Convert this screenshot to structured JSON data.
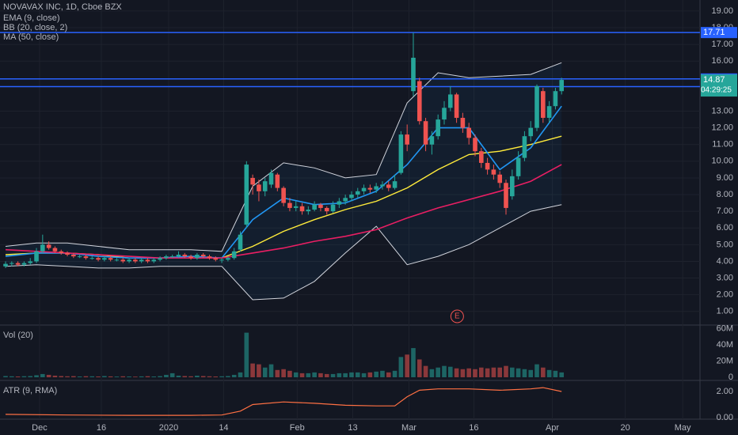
{
  "chart_data": [
    {
      "type": "candlestick",
      "title": "NOVAVAX INC, 1D, Cboe BZX",
      "xlim": [
        -0.9,
        112.4
      ],
      "ylim": [
        0.23,
        19.66
      ],
      "yticks": [
        {
          "value": 1,
          "label": "1.00"
        },
        {
          "value": 2,
          "label": "2.00"
        },
        {
          "value": 3,
          "label": "3.00"
        },
        {
          "value": 4,
          "label": "4.00"
        },
        {
          "value": 5,
          "label": "5.00"
        },
        {
          "value": 6,
          "label": "6.00"
        },
        {
          "value": 7,
          "label": "7.00"
        },
        {
          "value": 8,
          "label": "8.00"
        },
        {
          "value": 9,
          "label": "9.00"
        },
        {
          "value": 10,
          "label": "10.00"
        },
        {
          "value": 11,
          "label": "11.00"
        },
        {
          "value": 12,
          "label": "12.00"
        },
        {
          "value": 13,
          "label": "13.00"
        },
        {
          "value": 16,
          "label": "16.00"
        },
        {
          "value": 17,
          "label": "17.00"
        },
        {
          "value": 18,
          "label": "18.00"
        },
        {
          "value": 19,
          "label": "19.00"
        }
      ],
      "grid": true,
      "up_color": "#26a69a",
      "down_color": "#ef5350",
      "candles": [
        [
          3.7,
          4.0,
          3.6,
          3.85
        ],
        [
          3.85,
          4.0,
          3.7,
          3.9
        ],
        [
          3.9,
          4.0,
          3.7,
          3.8
        ],
        [
          3.8,
          4.0,
          3.7,
          3.9
        ],
        [
          3.9,
          4.2,
          3.8,
          4.0
        ],
        [
          4.0,
          4.8,
          3.9,
          4.6
        ],
        [
          4.6,
          5.6,
          4.5,
          5.0
        ],
        [
          5.0,
          5.2,
          4.7,
          4.8
        ],
        [
          4.8,
          4.9,
          4.5,
          4.6
        ],
        [
          4.6,
          4.7,
          4.4,
          4.5
        ],
        [
          4.5,
          4.6,
          4.3,
          4.4
        ],
        [
          4.4,
          4.5,
          4.2,
          4.3
        ],
        [
          4.3,
          4.4,
          4.2,
          4.3
        ],
        [
          4.3,
          4.4,
          4.1,
          4.2
        ],
        [
          4.2,
          4.3,
          4.1,
          4.2
        ],
        [
          4.2,
          4.3,
          4.0,
          4.1
        ],
        [
          4.1,
          4.3,
          4.0,
          4.2
        ],
        [
          4.2,
          4.3,
          4.0,
          4.1
        ],
        [
          4.1,
          4.2,
          4.0,
          4.1
        ],
        [
          4.1,
          4.2,
          3.9,
          4.0
        ],
        [
          4.0,
          4.2,
          3.9,
          4.1
        ],
        [
          4.1,
          4.2,
          3.9,
          4.0
        ],
        [
          4.0,
          4.2,
          3.9,
          4.1
        ],
        [
          4.1,
          4.2,
          3.9,
          4.0
        ],
        [
          4.0,
          4.2,
          3.9,
          4.1
        ],
        [
          4.1,
          4.3,
          4.0,
          4.2
        ],
        [
          4.2,
          4.4,
          4.1,
          4.3
        ],
        [
          4.3,
          4.4,
          4.2,
          4.3
        ],
        [
          4.3,
          4.6,
          4.2,
          4.4
        ],
        [
          4.4,
          4.5,
          4.2,
          4.3
        ],
        [
          4.3,
          4.4,
          4.1,
          4.2
        ],
        [
          4.2,
          4.5,
          4.1,
          4.4
        ],
        [
          4.4,
          4.5,
          4.2,
          4.3
        ],
        [
          4.3,
          4.4,
          4.1,
          4.2
        ],
        [
          4.2,
          4.3,
          4.0,
          4.1
        ],
        [
          4.1,
          4.2,
          3.9,
          4.1
        ],
        [
          4.1,
          4.3,
          4.0,
          4.2
        ],
        [
          4.2,
          4.8,
          4.1,
          4.6
        ],
        [
          4.7,
          5.8,
          4.6,
          5.6
        ],
        [
          6.2,
          10.0,
          6.0,
          9.8
        ],
        [
          9.0,
          9.2,
          8.0,
          8.6
        ],
        [
          8.6,
          8.9,
          7.6,
          8.2
        ],
        [
          8.2,
          9.0,
          7.9,
          8.8
        ],
        [
          8.6,
          9.5,
          8.4,
          9.3
        ],
        [
          9.2,
          9.3,
          8.2,
          8.4
        ],
        [
          8.4,
          8.5,
          7.3,
          7.5
        ],
        [
          7.5,
          7.8,
          7.0,
          7.2
        ],
        [
          7.2,
          7.6,
          7.0,
          7.3
        ],
        [
          7.3,
          7.5,
          6.8,
          7.0
        ],
        [
          7.0,
          7.3,
          6.8,
          7.1
        ],
        [
          7.1,
          7.6,
          7.0,
          7.4
        ],
        [
          7.4,
          7.5,
          7.0,
          7.2
        ],
        [
          7.2,
          7.3,
          6.8,
          7.0
        ],
        [
          7.0,
          7.6,
          6.9,
          7.4
        ],
        [
          7.4,
          7.8,
          7.2,
          7.6
        ],
        [
          7.6,
          8.0,
          7.4,
          7.8
        ],
        [
          7.8,
          8.2,
          7.6,
          8.0
        ],
        [
          8.0,
          8.4,
          7.8,
          8.2
        ],
        [
          8.2,
          8.6,
          8.0,
          8.4
        ],
        [
          8.4,
          8.6,
          8.1,
          8.3
        ],
        [
          8.3,
          8.7,
          8.1,
          8.5
        ],
        [
          8.5,
          8.8,
          8.3,
          8.6
        ],
        [
          8.6,
          8.8,
          8.2,
          8.4
        ],
        [
          8.4,
          9.2,
          8.3,
          8.8
        ],
        [
          9.3,
          11.8,
          9.2,
          11.6
        ],
        [
          11.6,
          12.2,
          10.6,
          11.0
        ],
        [
          14.2,
          17.7,
          13.9,
          16.2
        ],
        [
          14.8,
          15.0,
          12.2,
          12.4
        ],
        [
          12.4,
          12.6,
          10.6,
          11.0
        ],
        [
          11.0,
          11.8,
          10.4,
          11.5
        ],
        [
          11.5,
          12.8,
          11.3,
          12.5
        ],
        [
          12.5,
          13.6,
          12.2,
          13.2
        ],
        [
          13.2,
          14.5,
          13.0,
          14.0
        ],
        [
          14.0,
          14.1,
          12.3,
          12.6
        ],
        [
          12.6,
          12.9,
          11.7,
          12.0
        ],
        [
          12.0,
          12.3,
          11.0,
          11.4
        ],
        [
          11.4,
          11.6,
          10.3,
          10.6
        ],
        [
          10.6,
          10.8,
          9.6,
          9.9
        ],
        [
          9.9,
          10.2,
          9.2,
          9.5
        ],
        [
          9.5,
          9.8,
          8.9,
          9.2
        ],
        [
          9.2,
          9.4,
          8.4,
          8.7
        ],
        [
          8.7,
          8.9,
          6.8,
          7.2
        ],
        [
          7.9,
          9.5,
          7.7,
          9.1
        ],
        [
          9.1,
          10.6,
          8.9,
          10.2
        ],
        [
          10.2,
          11.8,
          10.0,
          11.5
        ],
        [
          11.5,
          12.4,
          11.2,
          12.0
        ],
        [
          12.0,
          14.6,
          11.8,
          14.5
        ],
        [
          14.2,
          14.4,
          12.3,
          12.6
        ],
        [
          12.6,
          13.6,
          12.3,
          13.3
        ],
        [
          13.3,
          14.4,
          13.1,
          14.2
        ],
        [
          14.2,
          15.0,
          14.0,
          14.87
        ]
      ],
      "series": [
        {
          "name": "EMA (9, close)",
          "color": "#2196f3",
          "x": [
            0,
            5,
            10,
            15,
            20,
            25,
            30,
            35,
            40,
            45,
            50,
            55,
            60,
            65,
            70,
            75,
            80,
            85,
            90
          ],
          "values": [
            4.3,
            4.5,
            4.5,
            4.3,
            4.2,
            4.2,
            4.3,
            4.2,
            6.5,
            7.8,
            7.4,
            7.5,
            8.2,
            9.8,
            12.0,
            12.0,
            9.5,
            10.8,
            13.3
          ]
        },
        {
          "name": "MA (50, close)",
          "color": "#e91e63",
          "x": [
            0,
            5,
            10,
            15,
            20,
            25,
            30,
            35,
            40,
            45,
            50,
            55,
            60,
            65,
            70,
            75,
            80,
            85,
            90
          ],
          "values": [
            4.7,
            4.6,
            4.5,
            4.4,
            4.3,
            4.2,
            4.2,
            4.2,
            4.5,
            4.8,
            5.2,
            5.5,
            5.9,
            6.6,
            7.2,
            7.7,
            8.2,
            8.8,
            9.8
          ]
        }
      ],
      "bands": {
        "name": "BB (20, close, 2)",
        "basis_color": "#ffeb3b",
        "band_color": "#d1d4dc",
        "x": [
          0,
          5,
          10,
          15,
          20,
          25,
          30,
          35,
          40,
          45,
          50,
          55,
          60,
          65,
          70,
          75,
          80,
          85,
          90
        ],
        "basis": [
          4.4,
          4.5,
          4.5,
          4.4,
          4.2,
          4.2,
          4.2,
          4.2,
          4.9,
          5.8,
          6.5,
          7.1,
          7.6,
          8.4,
          9.5,
          10.4,
          10.6,
          11.0,
          11.5
        ],
        "upper": [
          4.9,
          5.1,
          5.1,
          4.9,
          4.7,
          4.7,
          4.7,
          4.6,
          8.5,
          9.9,
          9.6,
          9.0,
          9.2,
          13.5,
          15.3,
          15.0,
          15.1,
          15.2,
          15.9
        ],
        "lower": [
          3.7,
          3.8,
          3.7,
          3.6,
          3.6,
          3.7,
          3.7,
          3.7,
          1.7,
          1.8,
          2.8,
          4.5,
          6.1,
          3.8,
          4.3,
          5.0,
          6.0,
          7.0,
          7.4
        ]
      },
      "hlines": [
        17.71,
        14.93,
        14.47
      ],
      "hline_color": "#2962ff",
      "countdown": "04:29:25",
      "events": [
        {
          "x": 73.1,
          "label": "E"
        }
      ]
    },
    {
      "type": "bar",
      "title": "Vol (20)",
      "xlim": [
        -0.9,
        112.4
      ],
      "ylim": [
        -2.9,
        63.4
      ],
      "yticks": [
        0,
        {
          "value": 20,
          "label": "20M"
        },
        {
          "value": 40,
          "label": "40M"
        },
        {
          "value": 60,
          "label": "60M"
        }
      ],
      "values": [
        1.5,
        1.2,
        1.0,
        1.3,
        1.5,
        2.5,
        4.0,
        3.0,
        2.0,
        1.5,
        1.2,
        1.4,
        1.0,
        1.3,
        1.2,
        1.0,
        1.5,
        1.1,
        0.9,
        1.2,
        1.0,
        0.8,
        1.1,
        1.3,
        1.0,
        1.4,
        3.0,
        5.0,
        2.0,
        1.5,
        1.2,
        2.0,
        1.5,
        1.2,
        1.0,
        1.2,
        1.5,
        3.0,
        6.0,
        55,
        17,
        16,
        12,
        16,
        9,
        10,
        8,
        6,
        5,
        5,
        6,
        5,
        4,
        4,
        5,
        5,
        6,
        6,
        5,
        6,
        7,
        8,
        6,
        8,
        25,
        28,
        36,
        22,
        14,
        10,
        12,
        14,
        13,
        11,
        10,
        11,
        10,
        12,
        11,
        12,
        12,
        14,
        12,
        11,
        10,
        9,
        16,
        12,
        9,
        8,
        6
      ]
    },
    {
      "type": "line",
      "title": "ATR (9, RMA)",
      "color": "#ff7043",
      "xlim": [
        -0.9,
        112.4
      ],
      "ylim": [
        -0.12,
        2.79
      ],
      "yticks": [
        {
          "value": 0,
          "label": "0.00"
        },
        {
          "value": 2,
          "label": "2.00"
        }
      ],
      "x": [
        0,
        10,
        20,
        30,
        35,
        38,
        40,
        45,
        50,
        55,
        60,
        63,
        65,
        67,
        70,
        75,
        80,
        85,
        87,
        90
      ],
      "values": [
        0.25,
        0.2,
        0.18,
        0.18,
        0.2,
        0.5,
        1.0,
        1.2,
        1.1,
        0.95,
        0.9,
        0.9,
        1.6,
        2.1,
        2.2,
        2.2,
        2.1,
        2.2,
        2.3,
        2.0
      ],
      "xticks": [
        {
          "value": 5.5,
          "label": "Dec"
        },
        {
          "value": 15.5,
          "label": "16"
        },
        {
          "value": 26.4,
          "label": "2020"
        },
        {
          "value": 35.3,
          "label": "14"
        },
        {
          "value": 47.2,
          "label": "Feb"
        },
        {
          "value": 56.2,
          "label": "13"
        },
        {
          "value": 65.3,
          "label": "Mar"
        },
        {
          "value": 75.8,
          "label": "16"
        },
        {
          "value": 88.5,
          "label": "Apr"
        },
        {
          "value": 100.3,
          "label": "20"
        },
        {
          "value": 109.6,
          "label": "May"
        }
      ]
    }
  ]
}
